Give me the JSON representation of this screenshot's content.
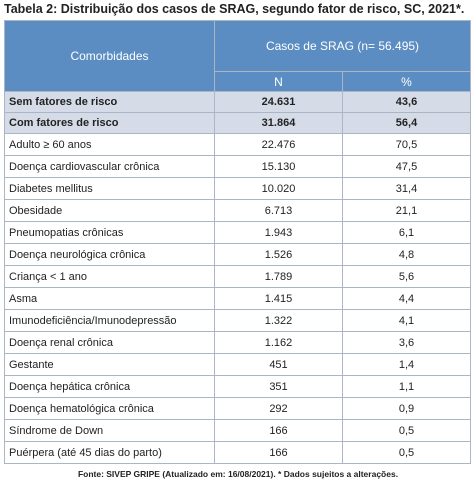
{
  "title": "Tabela 2: Distribuição dos casos de SRAG, segundo fator de risco, SC, 2021*.",
  "header": {
    "comorbidades": "Comorbidades",
    "casos": "Casos de SRAG (n= 56.495)",
    "n": "N",
    "pct": "%"
  },
  "summary": [
    {
      "label": "Sem fatores de risco",
      "n": "24.631",
      "pct": "43,6"
    },
    {
      "label": "Com fatores de risco",
      "n": "31.864",
      "pct": "56,4"
    }
  ],
  "rows": [
    {
      "label": "Adulto ≥ 60 anos",
      "n": "22.476",
      "pct": "70,5"
    },
    {
      "label": "Doença cardiovascular crônica",
      "n": "15.130",
      "pct": "47,5"
    },
    {
      "label": "Diabetes mellitus",
      "n": "10.020",
      "pct": "31,4"
    },
    {
      "label": "Obesidade",
      "n": "6.713",
      "pct": "21,1"
    },
    {
      "label": "Pneumopatias crônicas",
      "n": "1.943",
      "pct": "6,1"
    },
    {
      "label": "Doença neurológica crônica",
      "n": "1.526",
      "pct": "4,8"
    },
    {
      "label": "Criança < 1 ano",
      "n": "1.789",
      "pct": "5,6"
    },
    {
      "label": "Asma",
      "n": "1.415",
      "pct": "4,4"
    },
    {
      "label": "Imunodeficiência/Imunodepressão",
      "n": "1.322",
      "pct": "4,1"
    },
    {
      "label": "Doença renal crônica",
      "n": "1.162",
      "pct": "3,6"
    },
    {
      "label": "Gestante",
      "n": "451",
      "pct": "1,4"
    },
    {
      "label": "Doença hepática crônica",
      "n": "351",
      "pct": "1,1"
    },
    {
      "label": "Doença hematológica crônica",
      "n": "292",
      "pct": "0,9"
    },
    {
      "label": "Síndrome de Down",
      "n": "166",
      "pct": "0,5"
    },
    {
      "label": "Puérpera (até 45 dias do parto)",
      "n": "166",
      "pct": "0,5"
    }
  ],
  "footer": "Fonte: SIVEP GRIPE (Atualizado em: 16/08/2021). * Dados sujeitos a alterações."
}
